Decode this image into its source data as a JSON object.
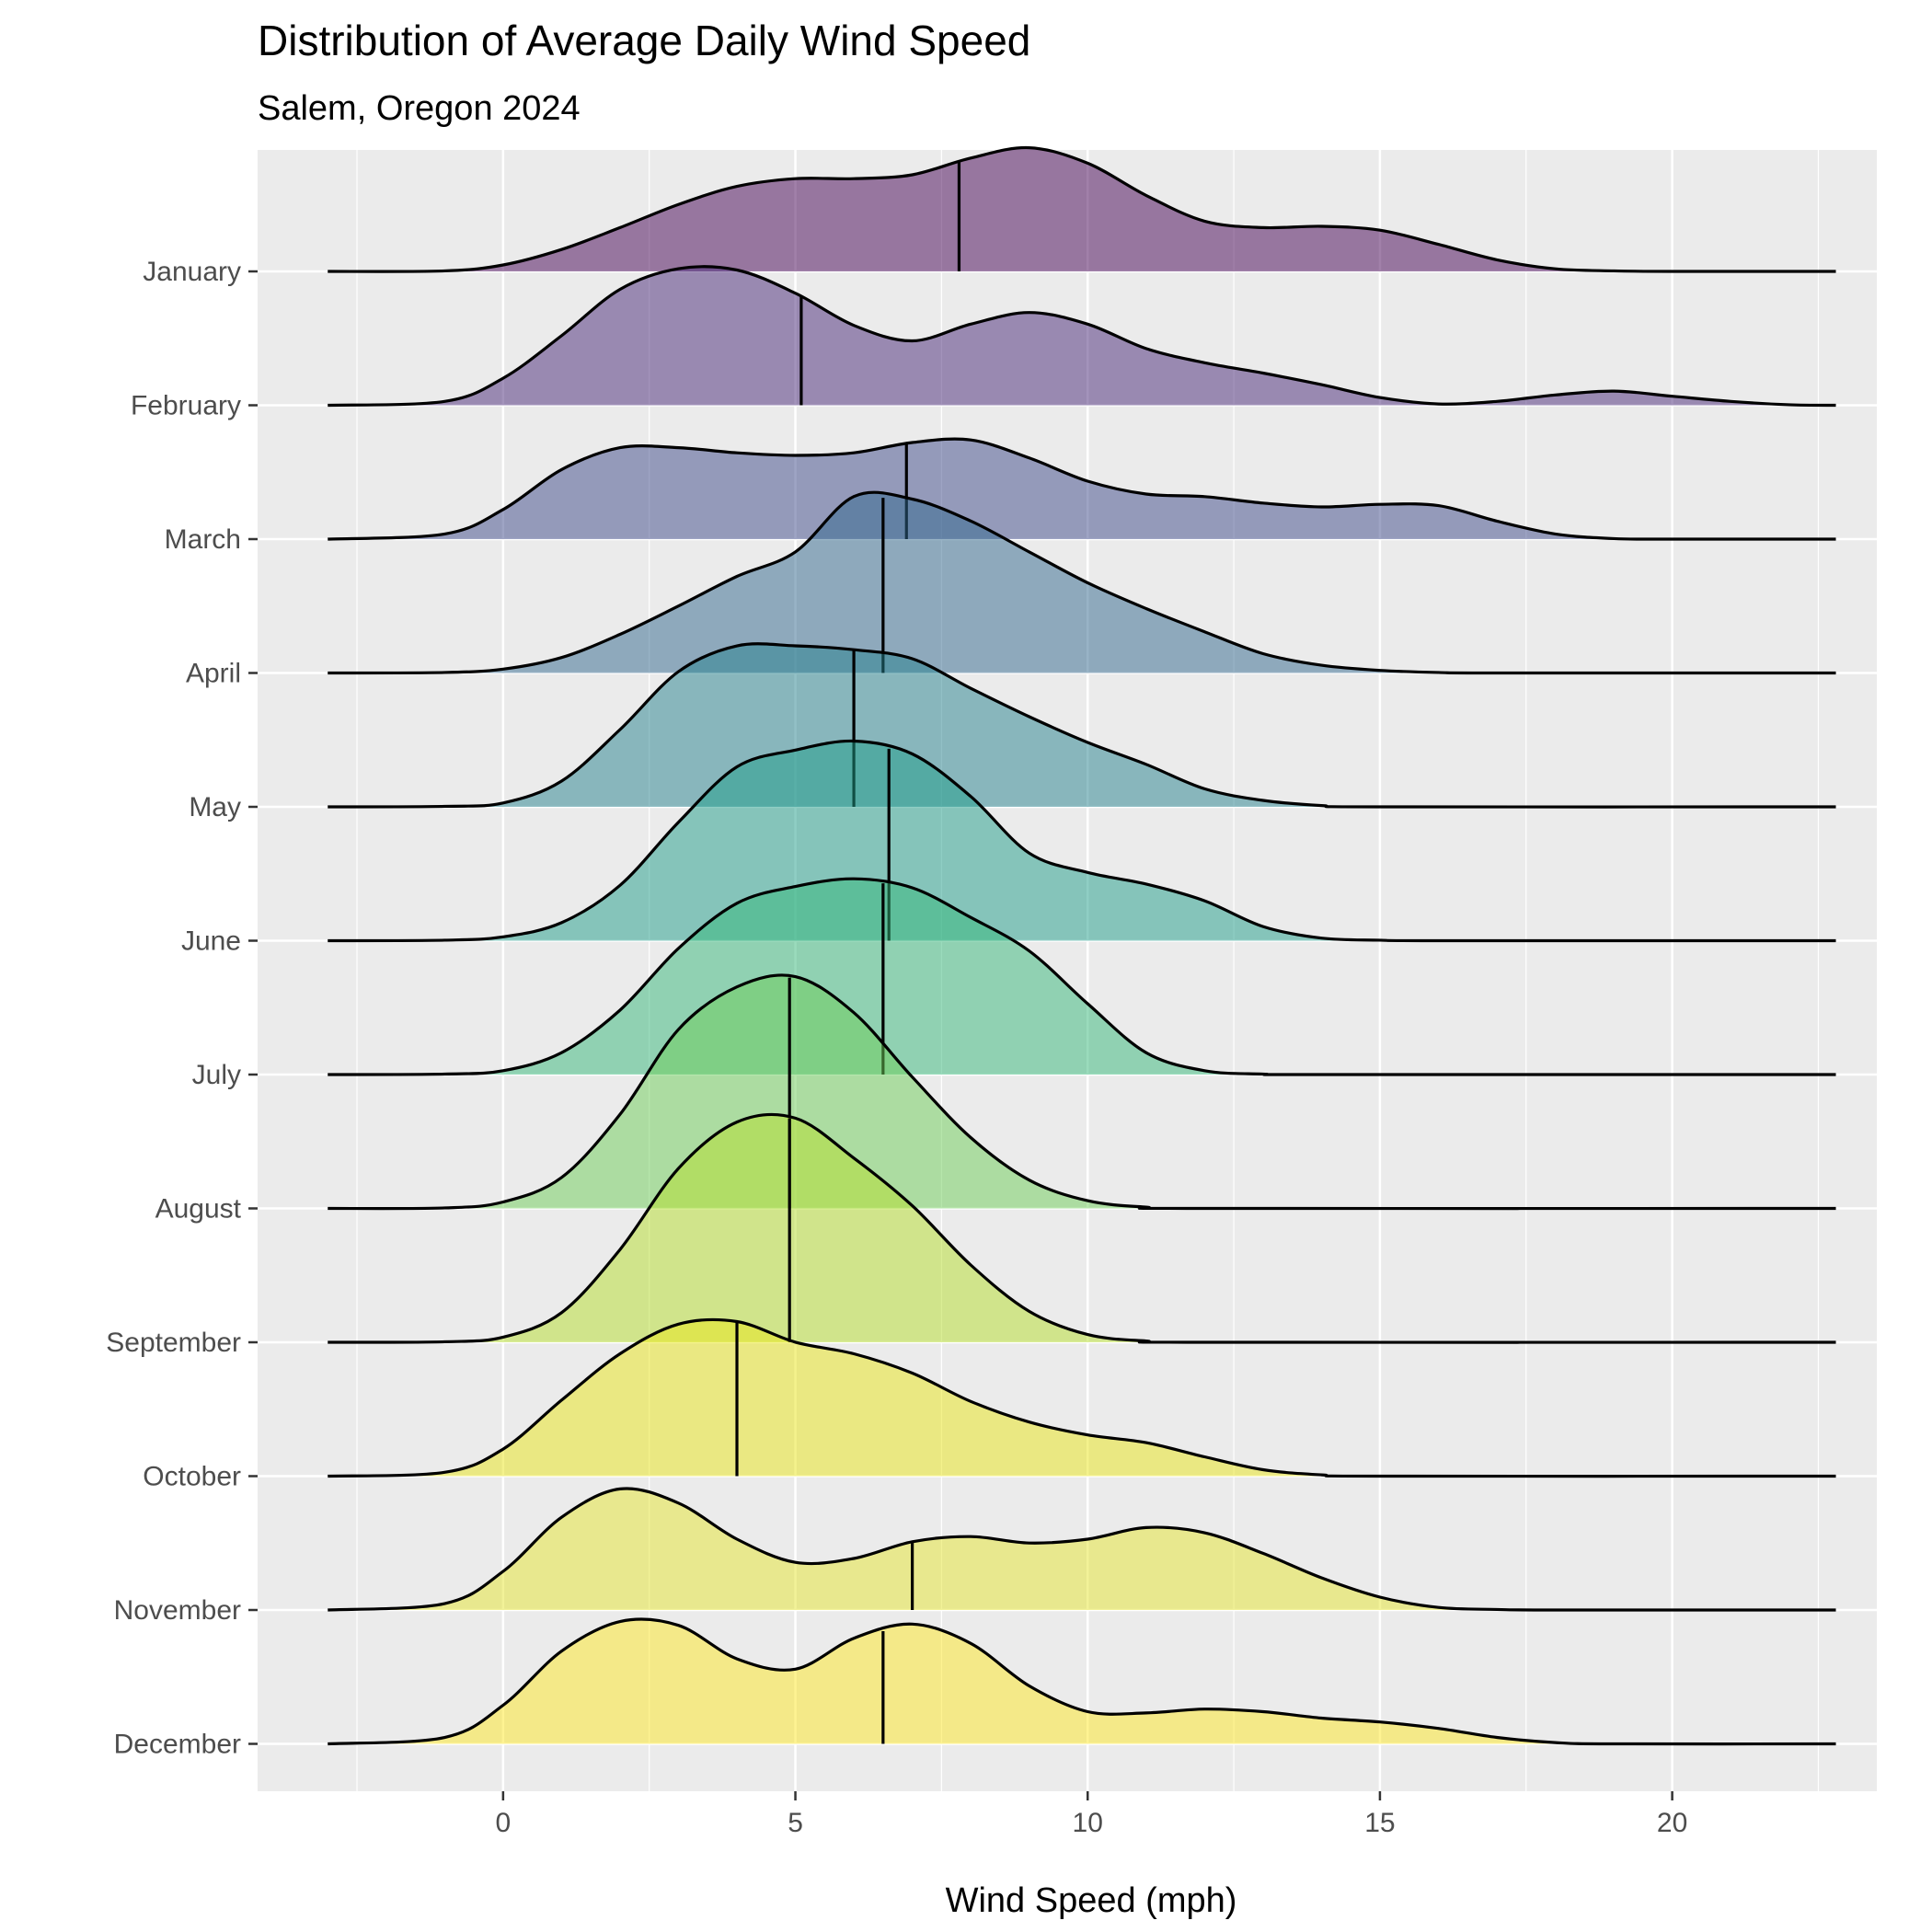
{
  "chart_data": {
    "type": "ridgeline",
    "title": "Distribution of Average Daily Wind Speed",
    "subtitle": "Salem, Oregon 2024",
    "xlabel": "Wind Speed (mph)",
    "ylabel": "",
    "xlim": [
      -4.2,
      23.5
    ],
    "x_ticks": [
      0,
      5,
      10,
      15,
      20
    ],
    "x_tick_labels": [
      "0",
      "5",
      "10",
      "15",
      "20"
    ],
    "grid": true,
    "legend": "none",
    "median_line": true,
    "series": [
      {
        "name": "January",
        "color": "#440154",
        "median": 7.8,
        "density": [
          [
            -3,
            0
          ],
          [
            -1,
            0.004
          ],
          [
            0,
            0.05
          ],
          [
            1,
            0.17
          ],
          [
            2,
            0.34
          ],
          [
            3,
            0.52
          ],
          [
            4,
            0.66
          ],
          [
            5,
            0.72
          ],
          [
            6,
            0.72
          ],
          [
            7,
            0.75
          ],
          [
            8,
            0.88
          ],
          [
            9,
            0.96
          ],
          [
            10,
            0.84
          ],
          [
            11,
            0.59
          ],
          [
            12,
            0.39
          ],
          [
            13,
            0.34
          ],
          [
            14,
            0.35
          ],
          [
            15,
            0.32
          ],
          [
            16,
            0.21
          ],
          [
            17,
            0.09
          ],
          [
            18,
            0.02
          ],
          [
            19,
            0.004
          ],
          [
            20,
            0
          ],
          [
            22.8,
            0
          ]
        ]
      },
      {
        "name": "February",
        "color": "#482878",
        "median": 5.1,
        "density": [
          [
            -3,
            0
          ],
          [
            -1,
            0.03
          ],
          [
            0,
            0.21
          ],
          [
            1,
            0.54
          ],
          [
            2,
            0.9
          ],
          [
            3,
            1.06
          ],
          [
            4,
            1.05
          ],
          [
            5,
            0.87
          ],
          [
            6,
            0.62
          ],
          [
            7,
            0.5
          ],
          [
            8,
            0.63
          ],
          [
            9,
            0.72
          ],
          [
            10,
            0.63
          ],
          [
            11,
            0.44
          ],
          [
            12,
            0.33
          ],
          [
            13,
            0.25
          ],
          [
            14,
            0.16
          ],
          [
            15,
            0.06
          ],
          [
            16,
            0.01
          ],
          [
            17,
            0.03
          ],
          [
            18,
            0.08
          ],
          [
            19,
            0.11
          ],
          [
            20,
            0.07
          ],
          [
            21,
            0.03
          ],
          [
            22,
            0.004
          ],
          [
            22.8,
            0
          ]
        ]
      },
      {
        "name": "March",
        "color": "#3e4989",
        "median": 6.9,
        "density": [
          [
            -3,
            0
          ],
          [
            -1,
            0.04
          ],
          [
            0,
            0.23
          ],
          [
            1,
            0.54
          ],
          [
            2,
            0.71
          ],
          [
            3,
            0.71
          ],
          [
            4,
            0.67
          ],
          [
            5,
            0.65
          ],
          [
            6,
            0.67
          ],
          [
            7,
            0.75
          ],
          [
            8,
            0.77
          ],
          [
            9,
            0.63
          ],
          [
            10,
            0.45
          ],
          [
            11,
            0.35
          ],
          [
            12,
            0.33
          ],
          [
            13,
            0.28
          ],
          [
            14,
            0.25
          ],
          [
            15,
            0.27
          ],
          [
            16,
            0.26
          ],
          [
            17,
            0.14
          ],
          [
            18,
            0.04
          ],
          [
            19,
            0.004
          ],
          [
            20,
            0
          ],
          [
            22.8,
            0
          ]
        ]
      },
      {
        "name": "April",
        "color": "#31688e",
        "median": 6.5,
        "density": [
          [
            -3,
            0
          ],
          [
            -1,
            0.004
          ],
          [
            0,
            0.03
          ],
          [
            1,
            0.12
          ],
          [
            2,
            0.3
          ],
          [
            3,
            0.52
          ],
          [
            4,
            0.75
          ],
          [
            5,
            0.94
          ],
          [
            6,
            1.37
          ],
          [
            7,
            1.35
          ],
          [
            8,
            1.18
          ],
          [
            9,
            0.94
          ],
          [
            10,
            0.7
          ],
          [
            11,
            0.5
          ],
          [
            12,
            0.32
          ],
          [
            13,
            0.15
          ],
          [
            14,
            0.06
          ],
          [
            15,
            0.02
          ],
          [
            16,
            0.004
          ],
          [
            17,
            0
          ],
          [
            22.8,
            0
          ]
        ]
      },
      {
        "name": "May",
        "color": "#26828e",
        "median": 6.0,
        "density": [
          [
            -3,
            0
          ],
          [
            -1,
            0.004
          ],
          [
            0,
            0.03
          ],
          [
            1,
            0.2
          ],
          [
            2,
            0.6
          ],
          [
            3,
            1.05
          ],
          [
            4,
            1.25
          ],
          [
            5,
            1.25
          ],
          [
            6,
            1.22
          ],
          [
            7,
            1.15
          ],
          [
            8,
            0.92
          ],
          [
            9,
            0.7
          ],
          [
            10,
            0.5
          ],
          [
            11,
            0.33
          ],
          [
            12,
            0.14
          ],
          [
            13,
            0.05
          ],
          [
            14,
            0.01
          ],
          [
            15,
            0
          ],
          [
            22.8,
            0
          ]
        ]
      },
      {
        "name": "June",
        "color": "#1f9e89",
        "median": 6.6,
        "density": [
          [
            -3,
            0
          ],
          [
            -1,
            0.004
          ],
          [
            0,
            0.03
          ],
          [
            1,
            0.14
          ],
          [
            2,
            0.43
          ],
          [
            3,
            0.92
          ],
          [
            4,
            1.35
          ],
          [
            5,
            1.48
          ],
          [
            6,
            1.55
          ],
          [
            7,
            1.45
          ],
          [
            8,
            1.12
          ],
          [
            9,
            0.68
          ],
          [
            10,
            0.53
          ],
          [
            11,
            0.44
          ],
          [
            12,
            0.31
          ],
          [
            13,
            0.11
          ],
          [
            14,
            0.02
          ],
          [
            15,
            0.004
          ],
          [
            16,
            0
          ],
          [
            22.8,
            0
          ]
        ]
      },
      {
        "name": "July",
        "color": "#35b779",
        "median": 6.5,
        "density": [
          [
            -3,
            0
          ],
          [
            -1,
            0.004
          ],
          [
            0,
            0.03
          ],
          [
            1,
            0.17
          ],
          [
            2,
            0.5
          ],
          [
            3,
            0.98
          ],
          [
            4,
            1.33
          ],
          [
            5,
            1.46
          ],
          [
            6,
            1.52
          ],
          [
            7,
            1.45
          ],
          [
            8,
            1.22
          ],
          [
            9,
            0.96
          ],
          [
            10,
            0.55
          ],
          [
            11,
            0.17
          ],
          [
            12,
            0.03
          ],
          [
            13,
            0.004
          ],
          [
            14,
            0
          ],
          [
            22.8,
            0
          ]
        ]
      },
      {
        "name": "August",
        "color": "#6ece58",
        "median": 4.9,
        "density": [
          [
            -3,
            0
          ],
          [
            -1,
            0.004
          ],
          [
            0,
            0.05
          ],
          [
            1,
            0.24
          ],
          [
            2,
            0.73
          ],
          [
            3,
            1.39
          ],
          [
            4,
            1.72
          ],
          [
            5,
            1.8
          ],
          [
            6,
            1.52
          ],
          [
            7,
            1.02
          ],
          [
            8,
            0.55
          ],
          [
            9,
            0.22
          ],
          [
            10,
            0.06
          ],
          [
            11,
            0.01
          ],
          [
            12,
            0
          ],
          [
            22.8,
            0
          ]
        ]
      },
      {
        "name": "September",
        "color": "#b5de2b",
        "median": 4.9,
        "density": [
          [
            -3,
            0
          ],
          [
            -1,
            0.004
          ],
          [
            0,
            0.04
          ],
          [
            1,
            0.23
          ],
          [
            2,
            0.72
          ],
          [
            3,
            1.35
          ],
          [
            4,
            1.71
          ],
          [
            5,
            1.74
          ],
          [
            6,
            1.43
          ],
          [
            7,
            1.06
          ],
          [
            8,
            0.6
          ],
          [
            9,
            0.24
          ],
          [
            10,
            0.06
          ],
          [
            11,
            0.01
          ],
          [
            12,
            0
          ],
          [
            22.8,
            0
          ]
        ]
      },
      {
        "name": "October",
        "color": "#eae51a",
        "median": 4.0,
        "density": [
          [
            -3,
            0
          ],
          [
            -1,
            0.03
          ],
          [
            0,
            0.21
          ],
          [
            1,
            0.59
          ],
          [
            2,
            0.95
          ],
          [
            3,
            1.18
          ],
          [
            4,
            1.2
          ],
          [
            5,
            1.04
          ],
          [
            6,
            0.95
          ],
          [
            7,
            0.8
          ],
          [
            8,
            0.58
          ],
          [
            9,
            0.42
          ],
          [
            10,
            0.32
          ],
          [
            11,
            0.26
          ],
          [
            12,
            0.15
          ],
          [
            13,
            0.05
          ],
          [
            14,
            0.01
          ],
          [
            15,
            0
          ],
          [
            22.8,
            0
          ]
        ]
      },
      {
        "name": "November",
        "color": "#e6e632",
        "median": 7.0,
        "density": [
          [
            -3,
            0
          ],
          [
            -1,
            0.05
          ],
          [
            0,
            0.3
          ],
          [
            1,
            0.72
          ],
          [
            2,
            0.94
          ],
          [
            3,
            0.83
          ],
          [
            4,
            0.55
          ],
          [
            5,
            0.37
          ],
          [
            6,
            0.4
          ],
          [
            7,
            0.53
          ],
          [
            8,
            0.57
          ],
          [
            9,
            0.52
          ],
          [
            10,
            0.55
          ],
          [
            11,
            0.64
          ],
          [
            12,
            0.6
          ],
          [
            13,
            0.44
          ],
          [
            14,
            0.25
          ],
          [
            15,
            0.1
          ],
          [
            16,
            0.02
          ],
          [
            17,
            0.004
          ],
          [
            18,
            0
          ],
          [
            22.8,
            0
          ]
        ]
      },
      {
        "name": "December",
        "color": "#fde725",
        "median": 6.5,
        "density": [
          [
            -3,
            0
          ],
          [
            -1,
            0.05
          ],
          [
            0,
            0.3
          ],
          [
            1,
            0.72
          ],
          [
            2,
            0.95
          ],
          [
            3,
            0.92
          ],
          [
            4,
            0.66
          ],
          [
            5,
            0.58
          ],
          [
            6,
            0.82
          ],
          [
            7,
            0.93
          ],
          [
            8,
            0.78
          ],
          [
            9,
            0.45
          ],
          [
            10,
            0.25
          ],
          [
            11,
            0.24
          ],
          [
            12,
            0.27
          ],
          [
            13,
            0.25
          ],
          [
            14,
            0.2
          ],
          [
            15,
            0.17
          ],
          [
            16,
            0.12
          ],
          [
            17,
            0.05
          ],
          [
            18,
            0.01
          ],
          [
            19,
            0
          ],
          [
            22.8,
            0
          ]
        ]
      }
    ]
  }
}
